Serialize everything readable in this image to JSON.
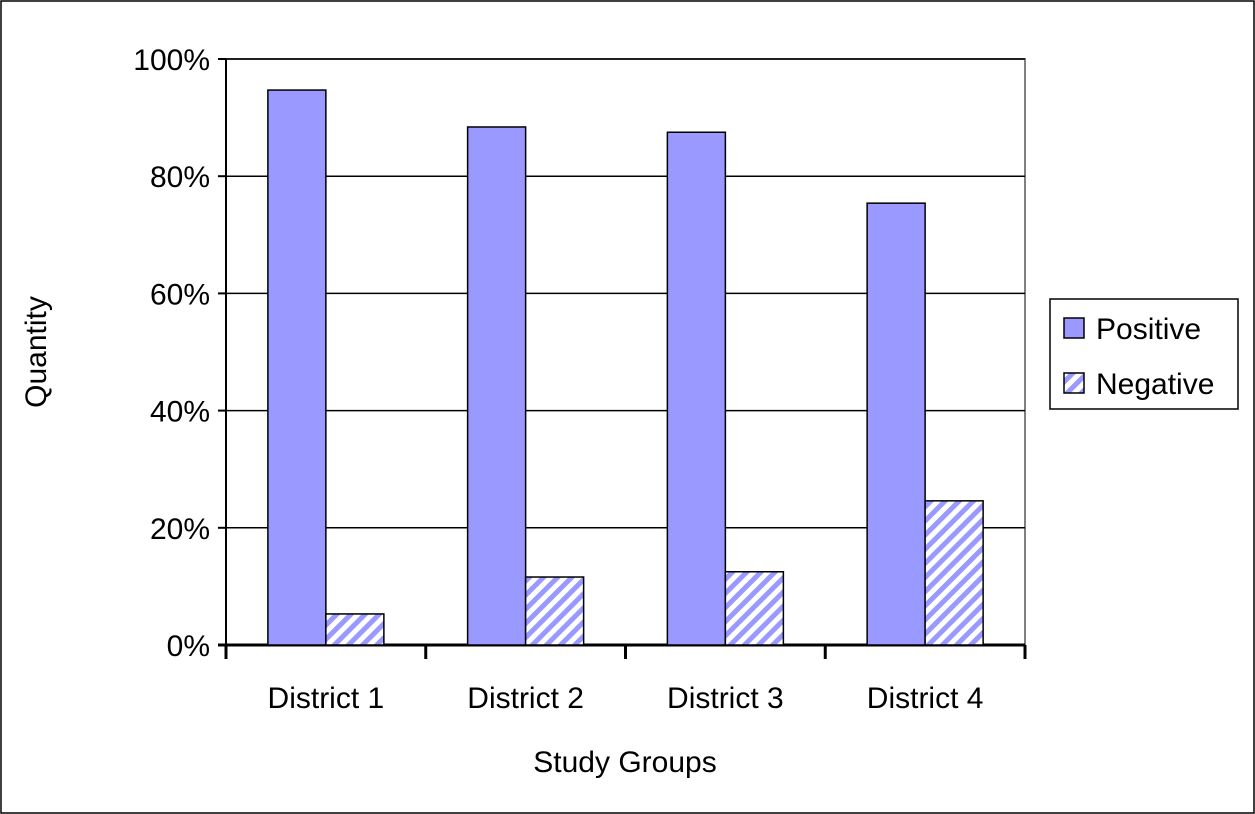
{
  "chart_data": {
    "type": "bar",
    "title": "",
    "xlabel": "Study Groups",
    "ylabel": "Quantity",
    "categories": [
      "District 1",
      "District 2",
      "District 3",
      "District 4"
    ],
    "series": [
      {
        "name": "Positive",
        "values": [
          94.7,
          88.4,
          87.5,
          75.4
        ],
        "color": "#9999ff",
        "pattern": "solid"
      },
      {
        "name": "Negative",
        "values": [
          5.3,
          11.6,
          12.5,
          24.6
        ],
        "color": "#9999ff",
        "pattern": "diagonal-hatch"
      }
    ],
    "ylim": [
      0,
      100
    ],
    "yticks": [
      "0%",
      "20%",
      "40%",
      "60%",
      "80%",
      "100%"
    ],
    "y_tick_values": [
      0,
      20,
      40,
      60,
      80,
      100
    ],
    "grid": true,
    "legend_position": "right"
  }
}
